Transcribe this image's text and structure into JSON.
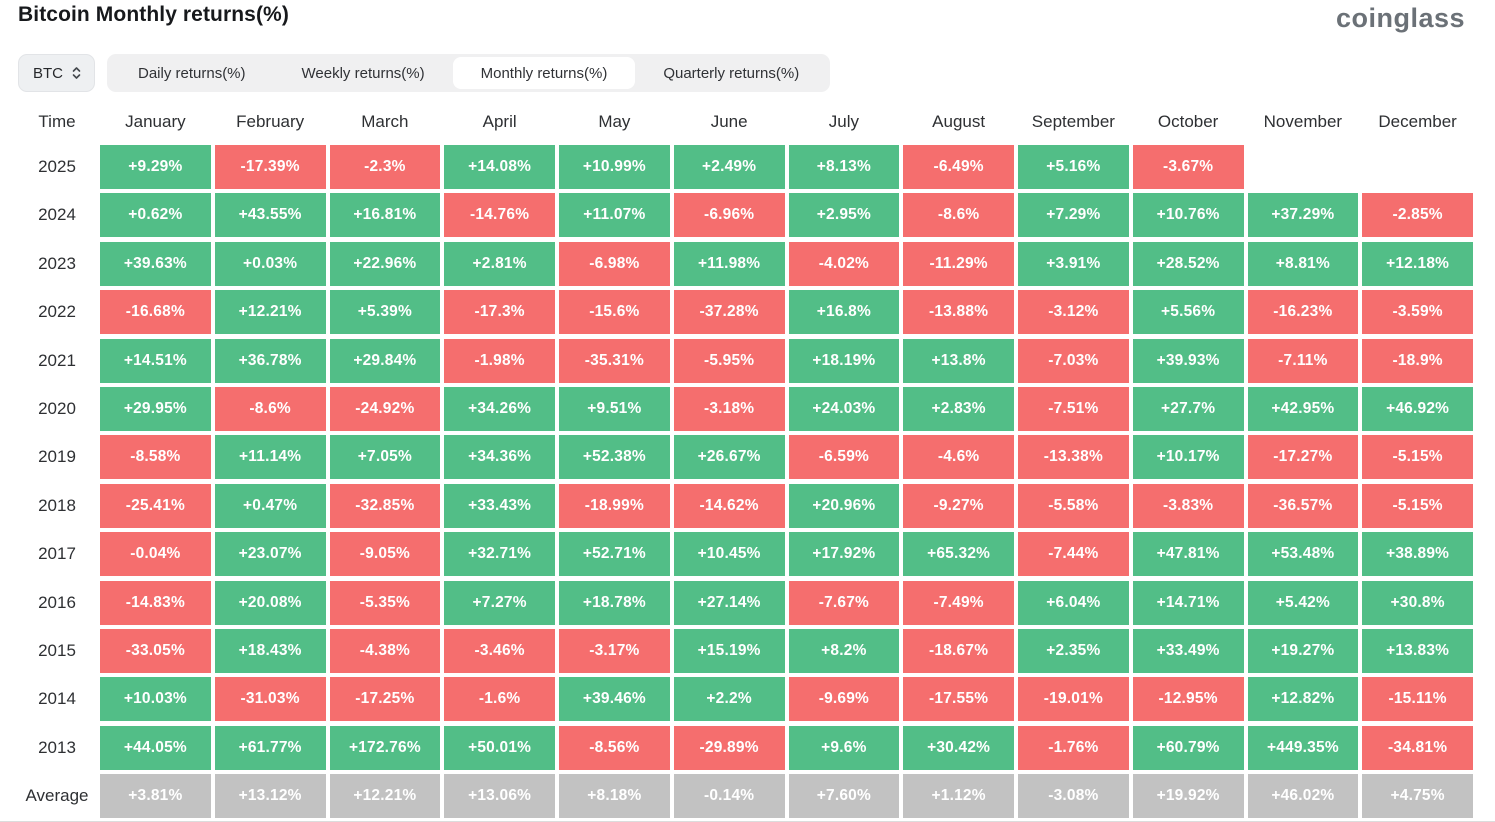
{
  "header": {
    "title": "Bitcoin Monthly returns(%)",
    "logo_text": "coinglass"
  },
  "controls": {
    "symbol_select": {
      "value": "BTC",
      "icon": "updown-chevrons"
    },
    "tabs": [
      {
        "label": "Daily returns(%)",
        "active": false
      },
      {
        "label": "Weekly returns(%)",
        "active": false
      },
      {
        "label": "Monthly returns(%)",
        "active": true
      },
      {
        "label": "Quarterly returns(%)",
        "active": false
      }
    ]
  },
  "colors": {
    "positive": "#52be87",
    "negative": "#f56e6e",
    "average": "#c2c2c2"
  },
  "table": {
    "time_header": "Time",
    "months": [
      "January",
      "February",
      "March",
      "April",
      "May",
      "June",
      "July",
      "August",
      "September",
      "October",
      "November",
      "December"
    ],
    "rows": [
      {
        "label": "2025",
        "average": false,
        "values": [
          "+9.29%",
          "-17.39%",
          "-2.3%",
          "+14.08%",
          "+10.99%",
          "+2.49%",
          "+8.13%",
          "-6.49%",
          "+5.16%",
          "-3.67%",
          null,
          null
        ]
      },
      {
        "label": "2024",
        "average": false,
        "values": [
          "+0.62%",
          "+43.55%",
          "+16.81%",
          "-14.76%",
          "+11.07%",
          "-6.96%",
          "+2.95%",
          "-8.6%",
          "+7.29%",
          "+10.76%",
          "+37.29%",
          "-2.85%"
        ]
      },
      {
        "label": "2023",
        "average": false,
        "values": [
          "+39.63%",
          "+0.03%",
          "+22.96%",
          "+2.81%",
          "-6.98%",
          "+11.98%",
          "-4.02%",
          "-11.29%",
          "+3.91%",
          "+28.52%",
          "+8.81%",
          "+12.18%"
        ]
      },
      {
        "label": "2022",
        "average": false,
        "values": [
          "-16.68%",
          "+12.21%",
          "+5.39%",
          "-17.3%",
          "-15.6%",
          "-37.28%",
          "+16.8%",
          "-13.88%",
          "-3.12%",
          "+5.56%",
          "-16.23%",
          "-3.59%"
        ]
      },
      {
        "label": "2021",
        "average": false,
        "values": [
          "+14.51%",
          "+36.78%",
          "+29.84%",
          "-1.98%",
          "-35.31%",
          "-5.95%",
          "+18.19%",
          "+13.8%",
          "-7.03%",
          "+39.93%",
          "-7.11%",
          "-18.9%"
        ]
      },
      {
        "label": "2020",
        "average": false,
        "values": [
          "+29.95%",
          "-8.6%",
          "-24.92%",
          "+34.26%",
          "+9.51%",
          "-3.18%",
          "+24.03%",
          "+2.83%",
          "-7.51%",
          "+27.7%",
          "+42.95%",
          "+46.92%"
        ]
      },
      {
        "label": "2019",
        "average": false,
        "values": [
          "-8.58%",
          "+11.14%",
          "+7.05%",
          "+34.36%",
          "+52.38%",
          "+26.67%",
          "-6.59%",
          "-4.6%",
          "-13.38%",
          "+10.17%",
          "-17.27%",
          "-5.15%"
        ]
      },
      {
        "label": "2018",
        "average": false,
        "values": [
          "-25.41%",
          "+0.47%",
          "-32.85%",
          "+33.43%",
          "-18.99%",
          "-14.62%",
          "+20.96%",
          "-9.27%",
          "-5.58%",
          "-3.83%",
          "-36.57%",
          "-5.15%"
        ]
      },
      {
        "label": "2017",
        "average": false,
        "values": [
          "-0.04%",
          "+23.07%",
          "-9.05%",
          "+32.71%",
          "+52.71%",
          "+10.45%",
          "+17.92%",
          "+65.32%",
          "-7.44%",
          "+47.81%",
          "+53.48%",
          "+38.89%"
        ]
      },
      {
        "label": "2016",
        "average": false,
        "values": [
          "-14.83%",
          "+20.08%",
          "-5.35%",
          "+7.27%",
          "+18.78%",
          "+27.14%",
          "-7.67%",
          "-7.49%",
          "+6.04%",
          "+14.71%",
          "+5.42%",
          "+30.8%"
        ]
      },
      {
        "label": "2015",
        "average": false,
        "values": [
          "-33.05%",
          "+18.43%",
          "-4.38%",
          "-3.46%",
          "-3.17%",
          "+15.19%",
          "+8.2%",
          "-18.67%",
          "+2.35%",
          "+33.49%",
          "+19.27%",
          "+13.83%"
        ]
      },
      {
        "label": "2014",
        "average": false,
        "values": [
          "+10.03%",
          "-31.03%",
          "-17.25%",
          "-1.6%",
          "+39.46%",
          "+2.2%",
          "-9.69%",
          "-17.55%",
          "-19.01%",
          "-12.95%",
          "+12.82%",
          "-15.11%"
        ]
      },
      {
        "label": "2013",
        "average": false,
        "values": [
          "+44.05%",
          "+61.77%",
          "+172.76%",
          "+50.01%",
          "-8.56%",
          "-29.89%",
          "+9.6%",
          "+30.42%",
          "-1.76%",
          "+60.79%",
          "+449.35%",
          "-34.81%"
        ]
      },
      {
        "label": "Average",
        "average": true,
        "values": [
          "+3.81%",
          "+13.12%",
          "+12.21%",
          "+13.06%",
          "+8.18%",
          "-0.14%",
          "+7.60%",
          "+1.12%",
          "-3.08%",
          "+19.92%",
          "+46.02%",
          "+4.75%"
        ]
      }
    ]
  }
}
